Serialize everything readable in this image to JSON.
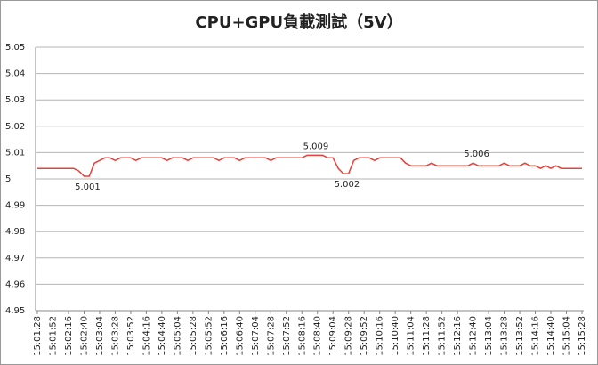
{
  "chart_data": {
    "type": "line",
    "title": "CPU+GPU負載測試（5V）",
    "categories": [
      "15:01:28",
      null,
      null,
      "15:01:52",
      null,
      null,
      "15:02:16",
      null,
      null,
      "15:02:40",
      null,
      null,
      "15:03:04",
      null,
      null,
      "15:03:28",
      null,
      null,
      "15:03:52",
      null,
      null,
      "15:04:16",
      null,
      null,
      "15:04:40",
      null,
      null,
      "15:05:04",
      null,
      null,
      "15:05:28",
      null,
      null,
      "15:05:52",
      null,
      null,
      "15:06:16",
      null,
      null,
      "15:06:40",
      null,
      null,
      "15:07:04",
      null,
      null,
      "15:07:28",
      null,
      null,
      "15:07:52",
      null,
      null,
      "15:08:16",
      null,
      null,
      "15:08:40",
      null,
      null,
      "15:09:04",
      null,
      null,
      "15:09:28",
      null,
      null,
      "15:09:52",
      null,
      null,
      "15:10:16",
      null,
      null,
      "15:10:40",
      null,
      null,
      "15:11:04",
      null,
      null,
      "15:11:28",
      null,
      null,
      "15:11:52",
      null,
      null,
      "15:12:16",
      null,
      null,
      "15:12:40",
      null,
      null,
      "15:13:04",
      null,
      null,
      "15:13:28",
      null,
      null,
      "15:13:52",
      null,
      null,
      "15:14:16",
      null,
      null,
      "15:14:40",
      null,
      null,
      "15:15:04",
      null,
      null,
      "15:15:28"
    ],
    "values": [
      5.004,
      5.004,
      5.004,
      5.004,
      5.004,
      5.004,
      5.004,
      5.004,
      5.003,
      5.001,
      5.001,
      5.006,
      5.007,
      5.008,
      5.008,
      5.007,
      5.008,
      5.008,
      5.008,
      5.007,
      5.008,
      5.008,
      5.008,
      5.008,
      5.008,
      5.007,
      5.008,
      5.008,
      5.008,
      5.007,
      5.008,
      5.008,
      5.008,
      5.008,
      5.008,
      5.007,
      5.008,
      5.008,
      5.008,
      5.007,
      5.008,
      5.008,
      5.008,
      5.008,
      5.008,
      5.007,
      5.008,
      5.008,
      5.008,
      5.008,
      5.008,
      5.008,
      5.009,
      5.009,
      5.009,
      5.009,
      5.008,
      5.008,
      5.004,
      5.002,
      5.002,
      5.007,
      5.008,
      5.008,
      5.008,
      5.007,
      5.008,
      5.008,
      5.008,
      5.008,
      5.008,
      5.006,
      5.005,
      5.005,
      5.005,
      5.005,
      5.006,
      5.005,
      5.005,
      5.005,
      5.005,
      5.005,
      5.005,
      5.005,
      5.006,
      5.005,
      5.005,
      5.005,
      5.005,
      5.005,
      5.006,
      5.005,
      5.005,
      5.005,
      5.006,
      5.005,
      5.005,
      5.004,
      5.005,
      5.004,
      5.005,
      5.004,
      5.004,
      5.004,
      5.004,
      5.004
    ],
    "value_labels": [
      null,
      null,
      null,
      null,
      null,
      null,
      null,
      null,
      null,
      "5.001",
      null,
      null,
      null,
      null,
      null,
      null,
      null,
      null,
      null,
      null,
      null,
      null,
      null,
      null,
      null,
      null,
      null,
      null,
      null,
      null,
      null,
      null,
      null,
      null,
      null,
      null,
      null,
      null,
      null,
      null,
      null,
      null,
      null,
      null,
      null,
      null,
      null,
      null,
      null,
      null,
      null,
      null,
      null,
      "5.009",
      null,
      null,
      null,
      null,
      null,
      "5.002",
      null,
      null,
      null,
      null,
      null,
      null,
      null,
      null,
      null,
      null,
      null,
      null,
      null,
      null,
      null,
      null,
      null,
      null,
      null,
      null,
      null,
      null,
      null,
      null,
      "5.006",
      null,
      null,
      null,
      null,
      null,
      null,
      null,
      null,
      null,
      null,
      null,
      null,
      null,
      null,
      null,
      null,
      null,
      null,
      null,
      null,
      null
    ],
    "color": "#e8403a",
    "ylim": [
      4.95,
      5.05
    ],
    "yticks": [
      4.95,
      4.96,
      4.97,
      4.98,
      4.99,
      5,
      5.01,
      5.02,
      5.03,
      5.04,
      5.05
    ],
    "grid": true
  }
}
